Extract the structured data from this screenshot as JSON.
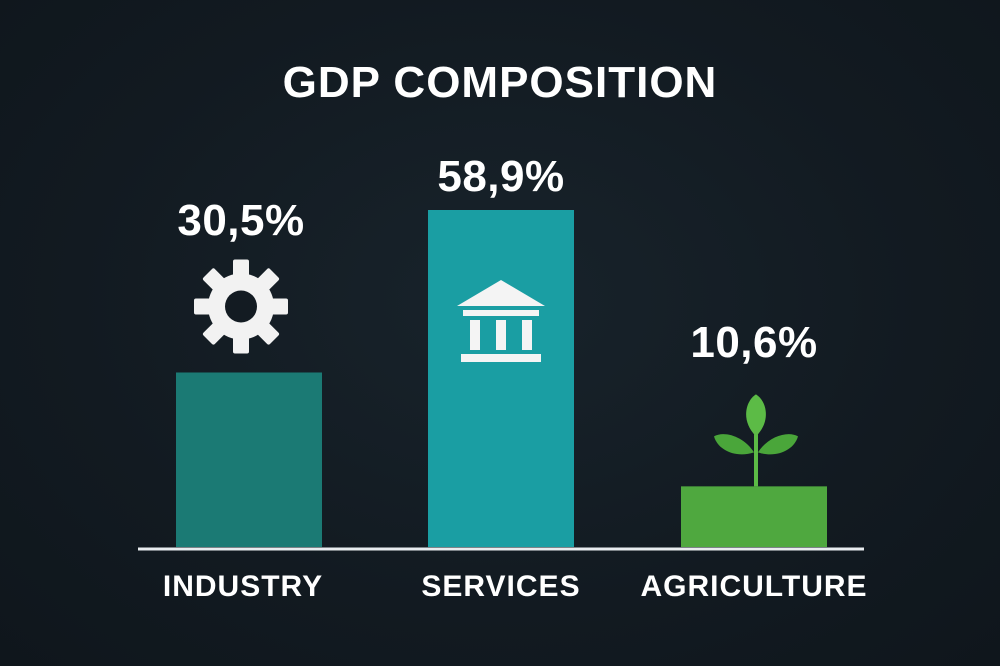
{
  "chart_data": {
    "type": "bar",
    "title": "GDP COMPOSITION",
    "categories": [
      "INDUSTRY",
      "SERVICES",
      "AGRICULTURE"
    ],
    "values": [
      30.5,
      58.9,
      10.6
    ],
    "value_labels": [
      "30,5%",
      "58,9%",
      "10,6%"
    ],
    "icons": [
      "gear-icon",
      "bank-building-icon",
      "plant-sprout-icon"
    ],
    "colors": [
      "#1b7a74",
      "#1a9ea3",
      "#4fa83f"
    ],
    "axis_color": "#e8ecef",
    "grid": false
  }
}
